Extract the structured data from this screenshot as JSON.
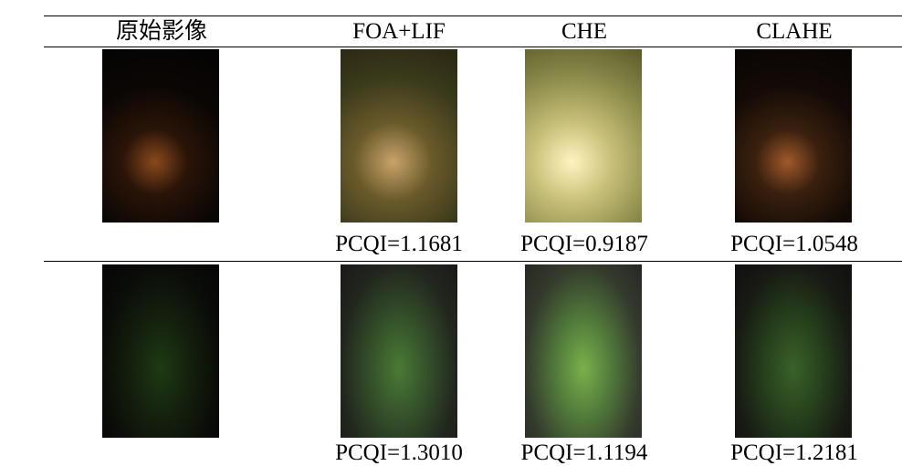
{
  "table": {
    "header": [
      "原始影像",
      "FOA+LIF",
      "CHE",
      "CLAHE"
    ],
    "rows": [
      {
        "scores": [
          "PCQI=1.1681",
          "PCQI=0.9187",
          "PCQI=1.0548"
        ]
      },
      {
        "scores": [
          "PCQI=1.3010",
          "PCQI=1.1194",
          "PCQI=1.2181"
        ]
      }
    ]
  }
}
